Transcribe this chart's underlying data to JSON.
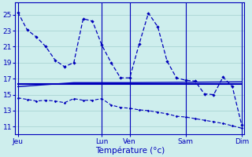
{
  "background_color": "#ceeeed",
  "grid_color": "#aad4d3",
  "line_color": "#0000bb",
  "xlabel": "Température (°c)",
  "xtick_labels": [
    "Jeu",
    "Lun",
    "Ven",
    "Sam",
    "Dim"
  ],
  "xtick_positions": [
    0,
    9,
    12,
    18,
    24
  ],
  "ytick_positions": [
    11,
    13,
    15,
    17,
    19,
    21,
    23,
    25
  ],
  "ylim": [
    10.0,
    26.5
  ],
  "xlim": [
    -0.3,
    24.3
  ],
  "line1_x": [
    0,
    1,
    2,
    3,
    4,
    5,
    6,
    7,
    8,
    9,
    10,
    11,
    12,
    13,
    14,
    15,
    16,
    17,
    18,
    19,
    20,
    21,
    22,
    23,
    24
  ],
  "line1_y": [
    25.3,
    23.1,
    22.2,
    21.0,
    19.3,
    18.5,
    19.0,
    24.5,
    24.2,
    21.2,
    19.0,
    17.1,
    17.1,
    21.3,
    25.2,
    23.5,
    19.2,
    17.1,
    16.8,
    16.7,
    15.1,
    15.0,
    17.2,
    16.0,
    11.2
  ],
  "line2_x": [
    0,
    24
  ],
  "line2_y": [
    16.3,
    16.3
  ],
  "line3_x": [
    0,
    6,
    9,
    12,
    24
  ],
  "line3_y": [
    16.0,
    16.5,
    16.5,
    16.5,
    16.6
  ],
  "line4_x": [
    0,
    1,
    2,
    3,
    4,
    5,
    6,
    7,
    8,
    9,
    10,
    11,
    12,
    13,
    14,
    15,
    16,
    17,
    18,
    19,
    20,
    21,
    22,
    23,
    24
  ],
  "line4_y": [
    14.6,
    14.4,
    14.2,
    14.3,
    14.2,
    14.0,
    14.5,
    14.3,
    14.3,
    14.5,
    13.7,
    13.4,
    13.3,
    13.1,
    13.0,
    12.8,
    12.6,
    12.3,
    12.2,
    12.0,
    11.8,
    11.6,
    11.4,
    11.1,
    10.8
  ],
  "vline_x": [
    0,
    9,
    12,
    18,
    24
  ]
}
